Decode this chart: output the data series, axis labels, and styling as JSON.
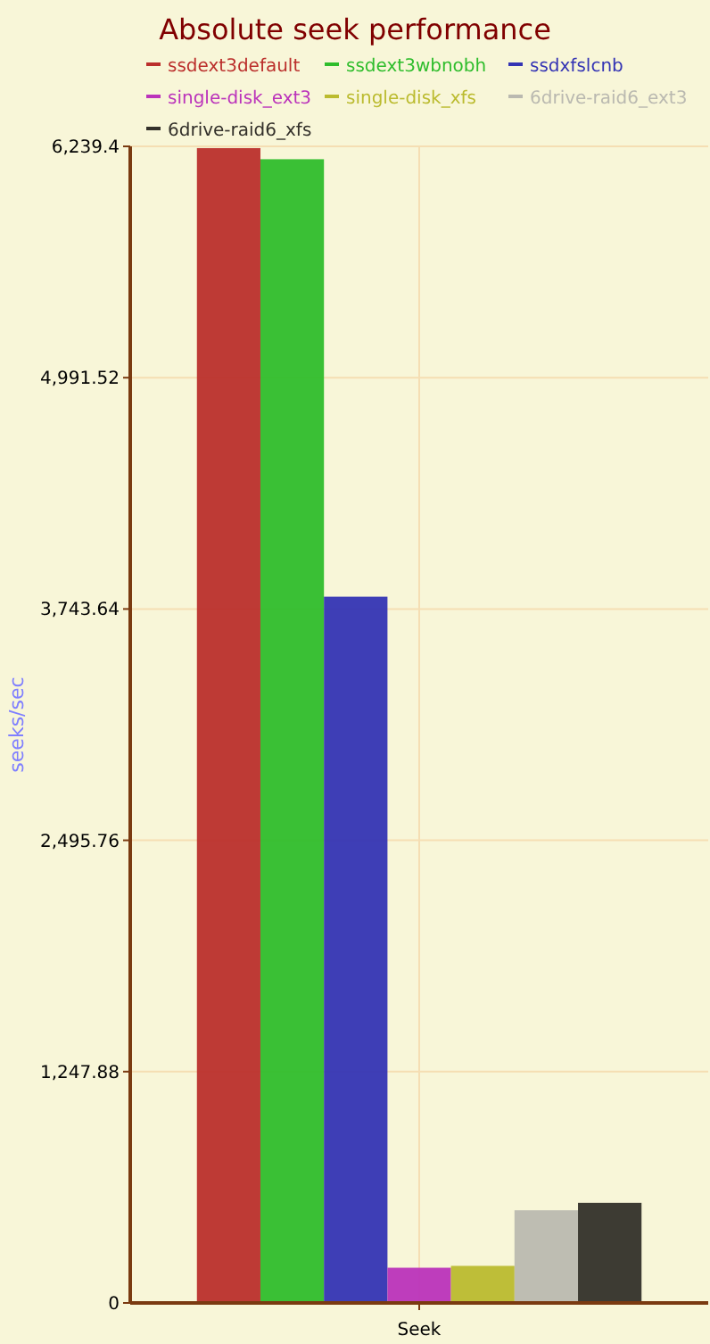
{
  "chart_data": {
    "type": "bar",
    "title": "Absolute seek performance",
    "ylabel": "seeks/sec",
    "categories": [
      "Seek"
    ],
    "series": [
      {
        "name": "ssdext3default",
        "color": "#bb2f2c",
        "values": [
          6230
        ]
      },
      {
        "name": "ssdext3wbnobh",
        "color": "#2fbd2c",
        "values": [
          6170
        ]
      },
      {
        "name": "ssdxfslcnb",
        "color": "#3434b4",
        "values": [
          3810
        ]
      },
      {
        "name": "single-disk_ext3",
        "color": "#bb33bb",
        "values": [
          190
        ]
      },
      {
        "name": "single-disk_xfs",
        "color": "#bbbb2f",
        "values": [
          200
        ]
      },
      {
        "name": "6drive-raid6_ext3",
        "color": "#bab9b0",
        "values": [
          500
        ]
      },
      {
        "name": "6drive-raid6_xfs",
        "color": "#33302a",
        "values": [
          540
        ]
      }
    ],
    "ylim": [
      0,
      6239.4
    ],
    "yticks": [
      0,
      {
        "value": 1247.88,
        "label": "1,247.88"
      },
      {
        "value": 2495.76,
        "label": "2,495.76"
      },
      {
        "value": 3743.64,
        "label": "3,743.64"
      },
      {
        "value": 4991.52,
        "label": "4,991.52"
      },
      {
        "value": 6239.4,
        "label": "6,239.4"
      }
    ],
    "grid": true,
    "legend": "top"
  }
}
